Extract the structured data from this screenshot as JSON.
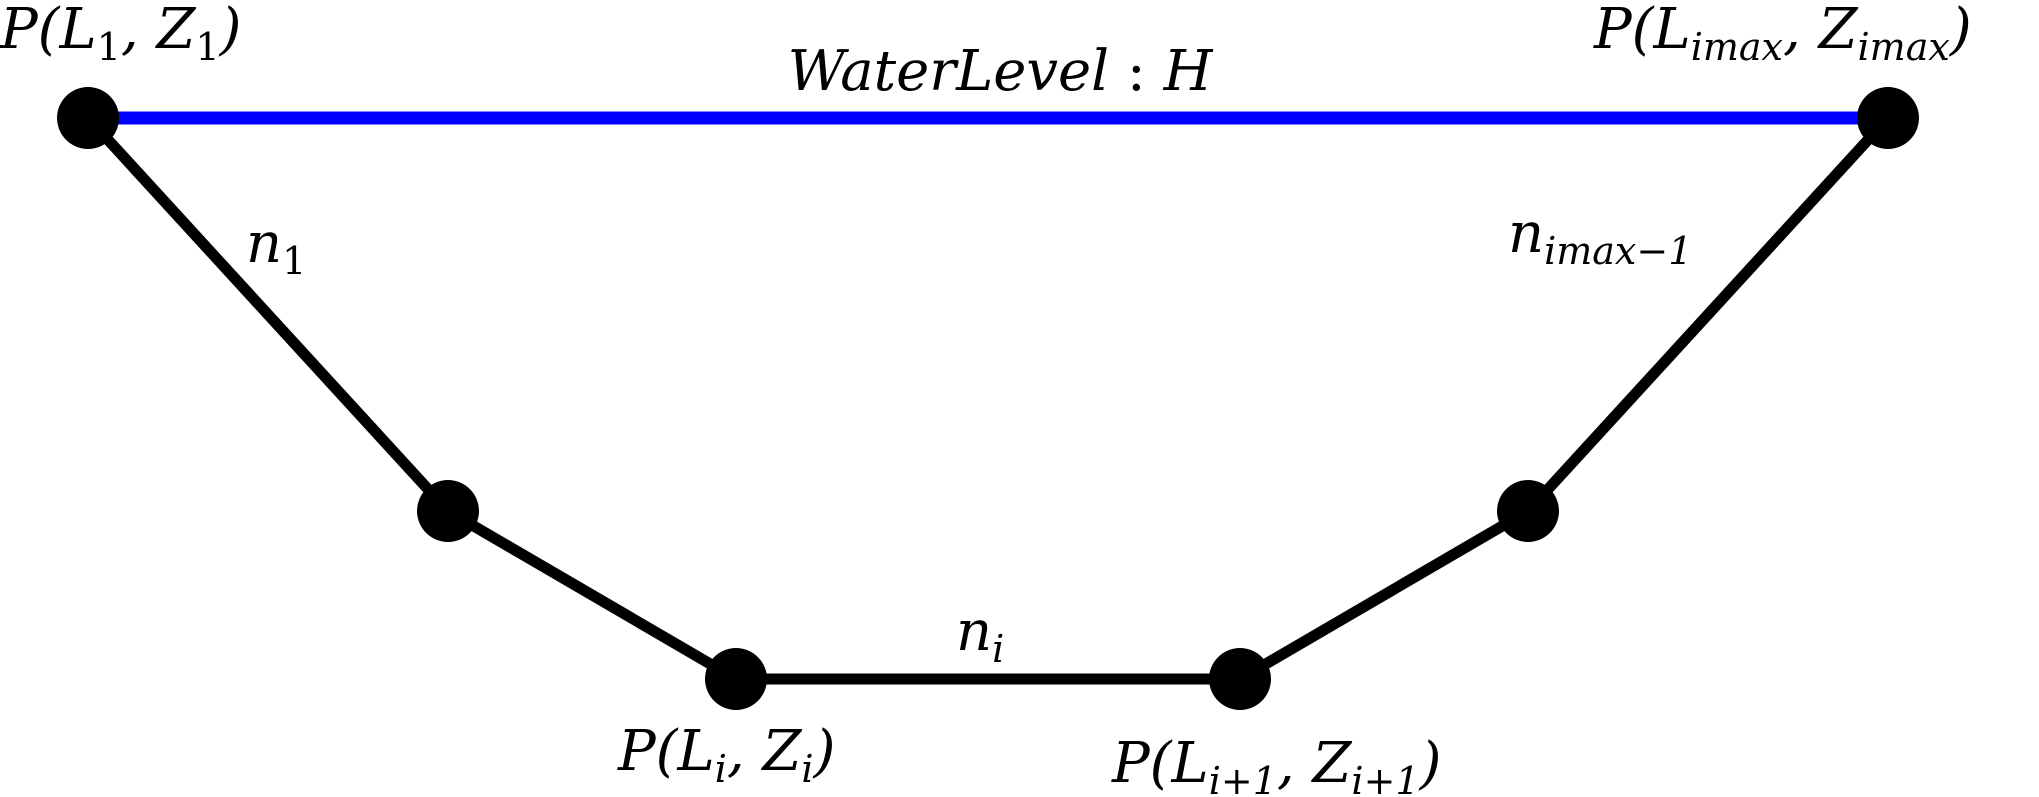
{
  "diagram": {
    "colors": {
      "water_line": "#0000ff",
      "channel_line": "#000000",
      "node_fill": "#000000",
      "background": "#ffffff"
    },
    "water_level": {
      "label_base": "WaterLevel",
      "label_sep": " : ",
      "label_var": "H"
    },
    "points": {
      "p1": {
        "prefix": "P(",
        "L": "L",
        "L_sub": "1",
        "comma": ", ",
        "Z": "Z",
        "Z_sub": "1",
        "suffix": ")"
      },
      "pi": {
        "prefix": "P(",
        "L": "L",
        "L_sub": "i",
        "comma": ", ",
        "Z": "Z",
        "Z_sub": "i",
        "suffix": ")"
      },
      "pi1": {
        "prefix": "P(",
        "L": "L",
        "L_sub": "i+1",
        "comma": ", ",
        "Z": "Z",
        "Z_sub": "i+1",
        "suffix": ")"
      },
      "pmax": {
        "prefix": "P(",
        "L": "L",
        "L_sub": "imax",
        "comma": ", ",
        "Z": "Z",
        "Z_sub": "imax",
        "suffix": ")"
      }
    },
    "segments": {
      "n1": {
        "base": "n",
        "sub": "1"
      },
      "ni": {
        "base": "n",
        "sub": "i"
      },
      "nmax": {
        "base": "n",
        "sub": "imax−1"
      }
    }
  }
}
